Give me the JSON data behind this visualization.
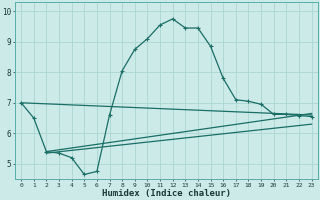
{
  "title": "",
  "xlabel": "Humidex (Indice chaleur)",
  "ylabel": "",
  "bg_color": "#cceae8",
  "grid_color": "#b0d8d5",
  "line_color": "#1a6e66",
  "xlim": [
    -0.5,
    23.5
  ],
  "ylim": [
    4.5,
    10.3
  ],
  "yticks": [
    5,
    6,
    7,
    8,
    9,
    10
  ],
  "xticks": [
    0,
    1,
    2,
    3,
    4,
    5,
    6,
    7,
    8,
    9,
    10,
    11,
    12,
    13,
    14,
    15,
    16,
    17,
    18,
    19,
    20,
    21,
    22,
    23
  ],
  "series": [
    [
      0,
      7.0
    ],
    [
      1,
      6.5
    ],
    [
      2,
      5.4
    ],
    [
      3,
      5.35
    ],
    [
      4,
      5.2
    ],
    [
      5,
      4.65
    ],
    [
      6,
      4.75
    ],
    [
      7,
      6.6
    ],
    [
      8,
      8.05
    ],
    [
      9,
      8.75
    ],
    [
      10,
      9.1
    ],
    [
      11,
      9.55
    ],
    [
      12,
      9.75
    ],
    [
      13,
      9.45
    ],
    [
      14,
      9.45
    ],
    [
      15,
      8.85
    ],
    [
      16,
      7.8
    ],
    [
      17,
      7.1
    ],
    [
      18,
      7.05
    ],
    [
      19,
      6.95
    ],
    [
      20,
      6.62
    ],
    [
      21,
      6.62
    ],
    [
      22,
      6.58
    ],
    [
      23,
      6.55
    ]
  ],
  "line2": [
    [
      0,
      7.0
    ],
    [
      23,
      6.6
    ]
  ],
  "line3": [
    [
      2,
      5.4
    ],
    [
      23,
      6.65
    ]
  ],
  "line4": [
    [
      2,
      5.35
    ],
    [
      23,
      6.3
    ]
  ]
}
